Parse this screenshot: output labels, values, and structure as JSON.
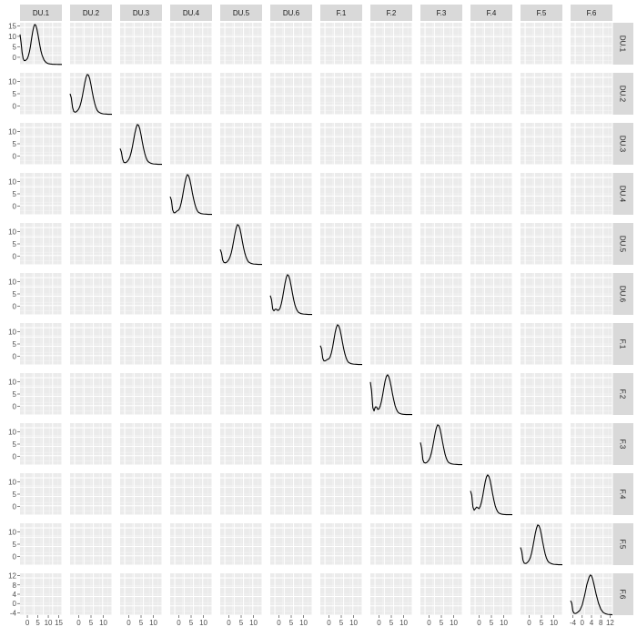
{
  "chart_data": {
    "type": "line",
    "layout": "pairs-matrix",
    "variables": [
      "DU.1",
      "DU.2",
      "DU.3",
      "DU.4",
      "DU.5",
      "DU.6",
      "F.1",
      "F.2",
      "F.3",
      "F.4",
      "F.5",
      "F.6"
    ],
    "diagonal": "density",
    "y_ticks": [
      [
        0,
        5,
        10,
        15
      ],
      [
        0,
        5,
        10
      ],
      [
        0,
        5,
        10
      ],
      [
        0,
        5,
        10
      ],
      [
        0,
        5,
        10
      ],
      [
        0,
        5,
        10
      ],
      [
        0,
        5,
        10
      ],
      [
        0,
        5,
        10
      ],
      [
        0,
        5,
        10
      ],
      [
        0,
        5,
        10
      ],
      [
        0,
        5,
        10
      ],
      [
        -4,
        0,
        4,
        8,
        12
      ]
    ],
    "y_ranges": [
      [
        -3.5,
        16.5
      ],
      [
        -3.5,
        13.5
      ],
      [
        -3.5,
        13.5
      ],
      [
        -3.5,
        13.5
      ],
      [
        -3.5,
        13.5
      ],
      [
        -3.5,
        13.5
      ],
      [
        -3.5,
        13.5
      ],
      [
        -3.5,
        13.5
      ],
      [
        -3.5,
        13.5
      ],
      [
        -3.5,
        13.5
      ],
      [
        -3.5,
        13.5
      ],
      [
        -5,
        13
      ]
    ],
    "x_ticks": [
      [
        0,
        5,
        10,
        15
      ],
      [
        0,
        5,
        10
      ],
      [
        0,
        5,
        10
      ],
      [
        0,
        5,
        10
      ],
      [
        0,
        5,
        10
      ],
      [
        0,
        5,
        10
      ],
      [
        0,
        5,
        10
      ],
      [
        0,
        5,
        10
      ],
      [
        0,
        5,
        10
      ],
      [
        0,
        5,
        10
      ],
      [
        0,
        5,
        10
      ],
      [
        -4,
        0,
        4,
        8,
        12
      ]
    ],
    "x_ranges": [
      [
        -3.5,
        16.5
      ],
      [
        -3.5,
        13.5
      ],
      [
        -3.5,
        13.5
      ],
      [
        -3.5,
        13.5
      ],
      [
        -3.5,
        13.5
      ],
      [
        -3.5,
        13.5
      ],
      [
        -3.5,
        13.5
      ],
      [
        -3.5,
        13.5
      ],
      [
        -3.5,
        13.5
      ],
      [
        -3.5,
        13.5
      ],
      [
        -3.5,
        13.5
      ],
      [
        -5,
        13
      ]
    ],
    "density_curves": [
      {
        "x": [
          -3.5,
          -3.0,
          -2.5,
          -2.0,
          -1.5,
          -1.0,
          -0.5,
          0.0,
          0.5,
          1.0,
          1.5,
          2.0,
          2.5,
          3.0,
          3.5,
          4.0,
          4.5,
          5.0,
          5.5,
          6.0,
          6.5,
          7.0,
          8.0,
          9.0,
          10.0,
          11.0,
          12.0,
          13.0,
          14.0,
          15.0,
          16.5
        ],
        "y": [
          0.75,
          0.55,
          0.3,
          0.15,
          0.1,
          0.1,
          0.12,
          0.15,
          0.22,
          0.32,
          0.46,
          0.64,
          0.8,
          0.93,
          1.0,
          0.98,
          0.9,
          0.77,
          0.62,
          0.47,
          0.34,
          0.24,
          0.11,
          0.05,
          0.025,
          0.015,
          0.01,
          0.008,
          0.006,
          0.005,
          0.005
        ]
      },
      {
        "x": [
          -3.5,
          -3.0,
          -2.5,
          -2.0,
          -1.5,
          -1.0,
          -0.5,
          0.0,
          0.5,
          1.0,
          1.5,
          2.0,
          2.5,
          3.0,
          3.5,
          4.0,
          4.5,
          5.0,
          5.5,
          6.0,
          6.5,
          7.0,
          7.5,
          8.0,
          9.0,
          10.0,
          11.0,
          12.0,
          13.5
        ],
        "y": [
          0.52,
          0.42,
          0.18,
          0.08,
          0.06,
          0.07,
          0.1,
          0.14,
          0.21,
          0.32,
          0.46,
          0.63,
          0.8,
          0.93,
          1.0,
          0.98,
          0.89,
          0.74,
          0.57,
          0.41,
          0.28,
          0.18,
          0.11,
          0.07,
          0.035,
          0.02,
          0.015,
          0.01,
          0.01
        ]
      },
      {
        "x": [
          -3.5,
          -3.0,
          -2.5,
          -2.0,
          -1.5,
          -1.0,
          -0.5,
          0.0,
          0.5,
          1.0,
          1.5,
          2.0,
          2.5,
          3.0,
          3.5,
          4.0,
          4.5,
          5.0,
          5.5,
          6.0,
          6.5,
          7.0,
          7.5,
          8.0,
          9.0,
          10.0,
          11.0,
          12.0,
          13.5
        ],
        "y": [
          0.4,
          0.32,
          0.14,
          0.06,
          0.05,
          0.06,
          0.09,
          0.13,
          0.2,
          0.31,
          0.45,
          0.62,
          0.79,
          0.92,
          1.0,
          0.98,
          0.89,
          0.74,
          0.57,
          0.41,
          0.28,
          0.18,
          0.11,
          0.07,
          0.035,
          0.02,
          0.015,
          0.01,
          0.01
        ]
      },
      {
        "x": [
          -3.5,
          -3.0,
          -2.5,
          -2.0,
          -1.5,
          -1.0,
          -0.5,
          0.0,
          0.5,
          1.0,
          1.5,
          2.0,
          2.5,
          3.0,
          3.5,
          4.0,
          4.5,
          5.0,
          5.5,
          6.0,
          6.5,
          7.0,
          7.5,
          8.0,
          9.0,
          10.0,
          11.0,
          12.0,
          13.5
        ],
        "y": [
          0.45,
          0.36,
          0.12,
          0.05,
          0.05,
          0.08,
          0.1,
          0.12,
          0.18,
          0.3,
          0.45,
          0.63,
          0.8,
          0.93,
          1.0,
          0.97,
          0.87,
          0.72,
          0.55,
          0.4,
          0.27,
          0.17,
          0.1,
          0.06,
          0.03,
          0.02,
          0.015,
          0.01,
          0.01
        ]
      },
      {
        "x": [
          -3.5,
          -3.0,
          -2.5,
          -2.0,
          -1.5,
          -1.0,
          -0.5,
          0.0,
          0.5,
          1.0,
          1.5,
          2.0,
          2.5,
          3.0,
          3.5,
          4.0,
          4.5,
          5.0,
          5.5,
          6.0,
          6.5,
          7.0,
          7.5,
          8.0,
          9.0,
          10.0,
          11.0,
          12.0,
          13.5
        ],
        "y": [
          0.38,
          0.3,
          0.12,
          0.06,
          0.05,
          0.06,
          0.09,
          0.13,
          0.2,
          0.3,
          0.44,
          0.61,
          0.78,
          0.92,
          1.0,
          0.98,
          0.9,
          0.75,
          0.58,
          0.42,
          0.29,
          0.19,
          0.12,
          0.07,
          0.035,
          0.02,
          0.015,
          0.01,
          0.01
        ]
      },
      {
        "x": [
          -3.5,
          -3.0,
          -2.5,
          -2.0,
          -1.5,
          -1.0,
          -0.5,
          0.0,
          0.5,
          1.0,
          1.5,
          2.0,
          2.5,
          3.0,
          3.5,
          4.0,
          4.5,
          5.0,
          5.5,
          6.0,
          6.5,
          7.0,
          7.5,
          8.0,
          9.0,
          10.0,
          11.0,
          12.0,
          13.5
        ],
        "y": [
          0.48,
          0.38,
          0.14,
          0.1,
          0.14,
          0.14,
          0.11,
          0.12,
          0.17,
          0.28,
          0.43,
          0.61,
          0.79,
          0.93,
          1.0,
          0.97,
          0.87,
          0.71,
          0.54,
          0.38,
          0.25,
          0.16,
          0.1,
          0.06,
          0.03,
          0.02,
          0.015,
          0.01,
          0.01
        ]
      },
      {
        "x": [
          -3.5,
          -3.0,
          -2.5,
          -2.0,
          -1.5,
          -1.0,
          -0.5,
          0.0,
          0.5,
          1.0,
          1.5,
          2.0,
          2.5,
          3.0,
          3.5,
          4.0,
          4.5,
          5.0,
          5.5,
          6.0,
          6.5,
          7.0,
          7.5,
          8.0,
          9.0,
          10.0,
          11.0,
          12.0,
          13.5
        ],
        "y": [
          0.48,
          0.4,
          0.16,
          0.1,
          0.1,
          0.12,
          0.14,
          0.15,
          0.2,
          0.3,
          0.44,
          0.62,
          0.8,
          0.93,
          1.0,
          0.97,
          0.88,
          0.73,
          0.56,
          0.4,
          0.27,
          0.17,
          0.1,
          0.06,
          0.03,
          0.02,
          0.015,
          0.01,
          0.01
        ]
      },
      {
        "x": [
          -3.5,
          -3.0,
          -2.5,
          -2.0,
          -1.5,
          -1.0,
          -0.5,
          0.0,
          0.5,
          1.0,
          1.5,
          2.0,
          2.5,
          3.0,
          3.5,
          4.0,
          4.5,
          5.0,
          5.5,
          6.0,
          6.5,
          7.0,
          7.5,
          8.0,
          9.0,
          10.0,
          11.0,
          12.0,
          13.5
        ],
        "y": [
          0.82,
          0.6,
          0.18,
          0.1,
          0.2,
          0.2,
          0.14,
          0.15,
          0.22,
          0.34,
          0.5,
          0.68,
          0.85,
          0.96,
          1.0,
          0.95,
          0.84,
          0.69,
          0.52,
          0.37,
          0.24,
          0.15,
          0.09,
          0.05,
          0.025,
          0.015,
          0.01,
          0.01,
          0.01
        ]
      },
      {
        "x": [
          -3.5,
          -3.0,
          -2.5,
          -2.0,
          -1.5,
          -1.0,
          -0.5,
          0.0,
          0.5,
          1.0,
          1.5,
          2.0,
          2.5,
          3.0,
          3.5,
          4.0,
          4.5,
          5.0,
          5.5,
          6.0,
          6.5,
          7.0,
          7.5,
          8.0,
          9.0,
          10.0,
          11.0,
          12.0,
          13.5
        ],
        "y": [
          0.56,
          0.42,
          0.13,
          0.06,
          0.05,
          0.06,
          0.09,
          0.13,
          0.2,
          0.31,
          0.46,
          0.63,
          0.8,
          0.93,
          1.0,
          0.98,
          0.89,
          0.74,
          0.57,
          0.41,
          0.27,
          0.17,
          0.1,
          0.06,
          0.03,
          0.02,
          0.015,
          0.01,
          0.01
        ]
      },
      {
        "x": [
          -3.5,
          -3.0,
          -2.5,
          -2.0,
          -1.5,
          -1.0,
          -0.5,
          0.0,
          0.5,
          1.0,
          1.5,
          2.0,
          2.5,
          3.0,
          3.5,
          4.0,
          4.5,
          5.0,
          5.5,
          6.0,
          6.5,
          7.0,
          7.5,
          8.0,
          9.0,
          10.0,
          11.0,
          12.0,
          13.5
        ],
        "y": [
          0.6,
          0.5,
          0.2,
          0.12,
          0.16,
          0.2,
          0.18,
          0.16,
          0.22,
          0.33,
          0.48,
          0.66,
          0.83,
          0.95,
          1.0,
          0.96,
          0.86,
          0.7,
          0.53,
          0.37,
          0.24,
          0.15,
          0.09,
          0.05,
          0.025,
          0.015,
          0.01,
          0.01,
          0.01
        ]
      },
      {
        "x": [
          -3.5,
          -3.0,
          -2.5,
          -2.0,
          -1.5,
          -1.0,
          -0.5,
          0.0,
          0.5,
          1.0,
          1.5,
          2.0,
          2.5,
          3.0,
          3.5,
          4.0,
          4.5,
          5.0,
          5.5,
          6.0,
          6.5,
          7.0,
          7.5,
          8.0,
          9.0,
          10.0,
          11.0,
          12.0,
          13.5
        ],
        "y": [
          0.44,
          0.34,
          0.12,
          0.05,
          0.04,
          0.05,
          0.08,
          0.12,
          0.19,
          0.3,
          0.45,
          0.62,
          0.79,
          0.92,
          1.0,
          0.98,
          0.9,
          0.75,
          0.58,
          0.42,
          0.28,
          0.18,
          0.11,
          0.07,
          0.035,
          0.02,
          0.015,
          0.01,
          0.01
        ]
      },
      {
        "x": [
          -5.0,
          -4.5,
          -4.0,
          -3.5,
          -3.0,
          -2.5,
          -2.0,
          -1.0,
          0.0,
          1.0,
          2.0,
          3.0,
          3.5,
          4.0,
          4.5,
          5.0,
          6.0,
          7.0,
          8.0,
          9.0,
          10.0,
          11.0,
          12.0,
          13.0
        ],
        "y": [
          0.36,
          0.3,
          0.1,
          0.05,
          0.04,
          0.05,
          0.07,
          0.12,
          0.25,
          0.48,
          0.76,
          0.95,
          1.0,
          0.98,
          0.9,
          0.78,
          0.52,
          0.3,
          0.15,
          0.07,
          0.035,
          0.02,
          0.015,
          0.01
        ]
      }
    ]
  }
}
